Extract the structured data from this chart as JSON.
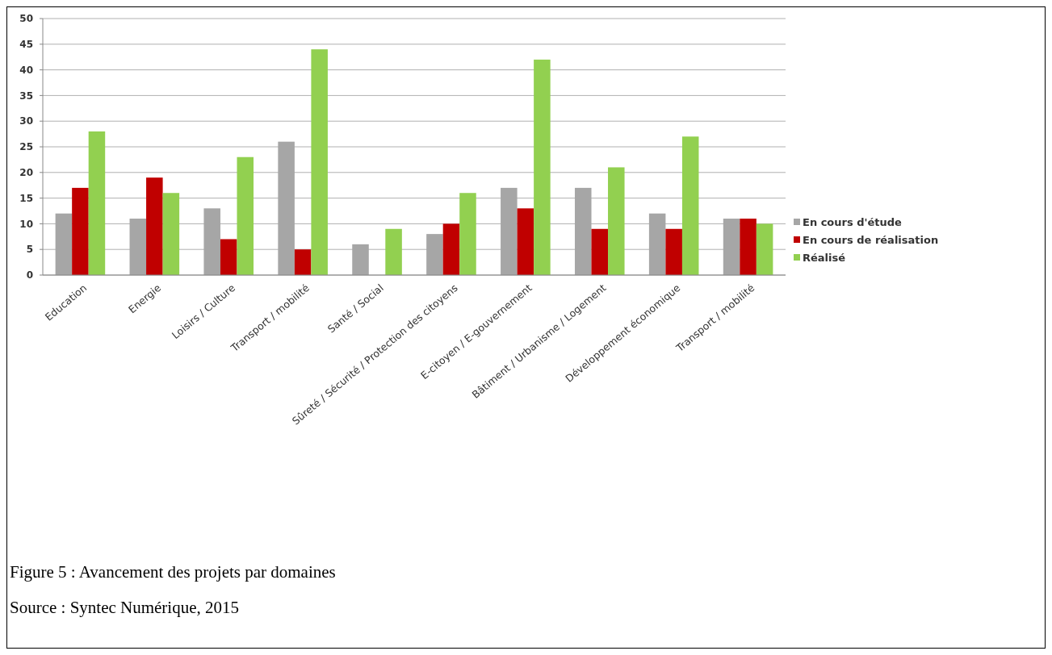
{
  "chart_data": {
    "type": "bar",
    "categories": [
      "Education",
      "Energie",
      "Loisirs / Culture",
      "Transport / mobilité",
      "Santé / Social",
      "Sûreté / Sécurité / Protection des citoyens",
      "E-citoyen / E-gouvernement",
      "Bâtiment / Urbanisme / Logement",
      "Développement économique",
      "Transport / mobilité"
    ],
    "series": [
      {
        "name": "En cours d'étude",
        "color": "#a6a6a6",
        "values": [
          12,
          11,
          13,
          26,
          6,
          8,
          17,
          17,
          12,
          11
        ]
      },
      {
        "name": "En cours de réalisation",
        "color": "#c00000",
        "values": [
          17,
          19,
          7,
          5,
          0,
          10,
          13,
          9,
          9,
          11
        ]
      },
      {
        "name": "Réalisé",
        "color": "#92d050",
        "values": [
          28,
          16,
          23,
          44,
          9,
          16,
          42,
          21,
          27,
          10
        ]
      }
    ],
    "ylim": [
      0,
      50
    ],
    "yticks": [
      0,
      5,
      10,
      15,
      20,
      25,
      30,
      35,
      40,
      45,
      50
    ],
    "grid": "y",
    "legend": "right",
    "annotations": [
      "Figure 5 : Avancement des projets par domaines",
      "Source : Syntec Numérique, 2015"
    ]
  }
}
